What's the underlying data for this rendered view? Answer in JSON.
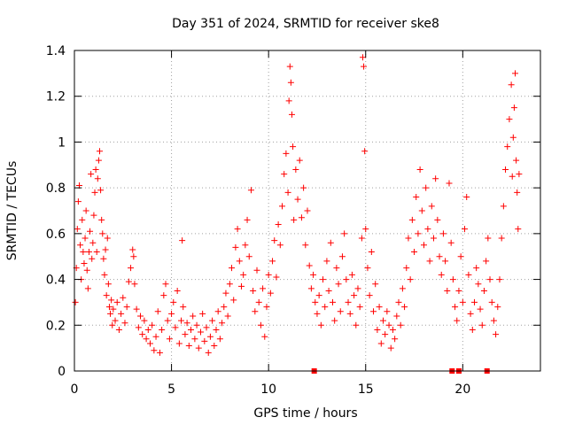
{
  "chart_data": {
    "type": "scatter",
    "title": "Day 351 of 2024, SRMTID for receiver ske8",
    "xlabel": "GPS time / hours",
    "ylabel": "SRMTID / TECUs",
    "xlim": [
      0,
      24
    ],
    "ylim": [
      0,
      1.4
    ],
    "xticks": [
      0,
      5,
      10,
      15,
      20
    ],
    "yticks": [
      0,
      0.2,
      0.4,
      0.6,
      0.8,
      1,
      1.2,
      1.4
    ],
    "xtick_labels": [
      "0",
      "5",
      "10",
      "15",
      "20"
    ],
    "ytick_labels": [
      "0",
      "0.2",
      "0.4",
      "0.6",
      "0.8",
      "1",
      "1.2",
      "1.4"
    ],
    "grid": true,
    "marker": "+",
    "color": "#ff0000",
    "series": [
      {
        "name": "SRMTID",
        "points": [
          [
            0.05,
            0.3
          ],
          [
            0.1,
            0.45
          ],
          [
            0.15,
            0.62
          ],
          [
            0.2,
            0.74
          ],
          [
            0.25,
            0.81
          ],
          [
            0.3,
            0.55
          ],
          [
            0.35,
            0.4
          ],
          [
            0.4,
            0.66
          ],
          [
            0.45,
            0.52
          ],
          [
            0.5,
            0.47
          ],
          [
            0.55,
            0.58
          ],
          [
            0.6,
            0.7
          ],
          [
            0.65,
            0.44
          ],
          [
            0.7,
            0.36
          ],
          [
            0.75,
            0.52
          ],
          [
            0.8,
            0.61
          ],
          [
            0.85,
            0.86
          ],
          [
            0.9,
            0.49
          ],
          [
            0.95,
            0.56
          ],
          [
            1.0,
            0.68
          ],
          [
            1.05,
            0.78
          ],
          [
            1.1,
            0.88
          ],
          [
            1.15,
            0.52
          ],
          [
            1.2,
            0.84
          ],
          [
            1.25,
            0.92
          ],
          [
            1.3,
            0.96
          ],
          [
            1.35,
            0.79
          ],
          [
            1.4,
            0.66
          ],
          [
            1.45,
            0.6
          ],
          [
            1.5,
            0.49
          ],
          [
            1.55,
            0.42
          ],
          [
            1.6,
            0.53
          ],
          [
            1.65,
            0.33
          ],
          [
            1.7,
            0.58
          ],
          [
            1.75,
            0.38
          ],
          [
            1.8,
            0.28
          ],
          [
            1.85,
            0.25
          ],
          [
            1.9,
            0.31
          ],
          [
            1.95,
            0.2
          ],
          [
            2.0,
            0.27
          ],
          [
            2.1,
            0.22
          ],
          [
            2.2,
            0.3
          ],
          [
            2.3,
            0.18
          ],
          [
            2.4,
            0.25
          ],
          [
            2.5,
            0.32
          ],
          [
            2.6,
            0.21
          ],
          [
            2.7,
            0.28
          ],
          [
            2.8,
            0.39
          ],
          [
            2.9,
            0.45
          ],
          [
            3.0,
            0.53
          ],
          [
            3.05,
            0.5
          ],
          [
            3.1,
            0.38
          ],
          [
            3.2,
            0.27
          ],
          [
            3.3,
            0.19
          ],
          [
            3.4,
            0.24
          ],
          [
            3.5,
            0.16
          ],
          [
            3.6,
            0.22
          ],
          [
            3.7,
            0.14
          ],
          [
            3.8,
            0.18
          ],
          [
            3.9,
            0.12
          ],
          [
            4.0,
            0.2
          ],
          [
            4.1,
            0.09
          ],
          [
            4.2,
            0.15
          ],
          [
            4.3,
            0.26
          ],
          [
            4.4,
            0.08
          ],
          [
            4.5,
            0.18
          ],
          [
            4.6,
            0.33
          ],
          [
            4.7,
            0.38
          ],
          [
            4.8,
            0.22
          ],
          [
            4.9,
            0.14
          ],
          [
            5.0,
            0.25
          ],
          [
            5.1,
            0.3
          ],
          [
            5.2,
            0.19
          ],
          [
            5.3,
            0.35
          ],
          [
            5.4,
            0.12
          ],
          [
            5.5,
            0.22
          ],
          [
            5.55,
            0.57
          ],
          [
            5.6,
            0.28
          ],
          [
            5.7,
            0.16
          ],
          [
            5.8,
            0.21
          ],
          [
            5.9,
            0.11
          ],
          [
            6.0,
            0.18
          ],
          [
            6.1,
            0.24
          ],
          [
            6.2,
            0.14
          ],
          [
            6.3,
            0.2
          ],
          [
            6.4,
            0.1
          ],
          [
            6.5,
            0.17
          ],
          [
            6.6,
            0.25
          ],
          [
            6.7,
            0.13
          ],
          [
            6.8,
            0.19
          ],
          [
            6.9,
            0.08
          ],
          [
            7.0,
            0.15
          ],
          [
            7.1,
            0.22
          ],
          [
            7.2,
            0.11
          ],
          [
            7.3,
            0.18
          ],
          [
            7.4,
            0.26
          ],
          [
            7.5,
            0.14
          ],
          [
            7.6,
            0.21
          ],
          [
            7.7,
            0.28
          ],
          [
            7.8,
            0.34
          ],
          [
            7.9,
            0.24
          ],
          [
            8.0,
            0.38
          ],
          [
            8.1,
            0.45
          ],
          [
            8.2,
            0.31
          ],
          [
            8.3,
            0.54
          ],
          [
            8.4,
            0.62
          ],
          [
            8.5,
            0.48
          ],
          [
            8.6,
            0.37
          ],
          [
            8.7,
            0.42
          ],
          [
            8.8,
            0.55
          ],
          [
            8.9,
            0.66
          ],
          [
            9.0,
            0.5
          ],
          [
            9.1,
            0.79
          ],
          [
            9.2,
            0.35
          ],
          [
            9.3,
            0.26
          ],
          [
            9.4,
            0.44
          ],
          [
            9.5,
            0.3
          ],
          [
            9.6,
            0.2
          ],
          [
            9.7,
            0.36
          ],
          [
            9.8,
            0.15
          ],
          [
            9.9,
            0.28
          ],
          [
            10.0,
            0.42
          ],
          [
            10.1,
            0.34
          ],
          [
            10.2,
            0.48
          ],
          [
            10.3,
            0.57
          ],
          [
            10.4,
            0.41
          ],
          [
            10.5,
            0.64
          ],
          [
            10.6,
            0.55
          ],
          [
            10.7,
            0.72
          ],
          [
            10.8,
            0.86
          ],
          [
            10.9,
            0.95
          ],
          [
            11.0,
            0.78
          ],
          [
            11.05,
            1.18
          ],
          [
            11.1,
            1.33
          ],
          [
            11.15,
            1.26
          ],
          [
            11.2,
            1.12
          ],
          [
            11.25,
            0.98
          ],
          [
            11.3,
            0.66
          ],
          [
            11.4,
            0.88
          ],
          [
            11.5,
            0.75
          ],
          [
            11.6,
            0.92
          ],
          [
            11.7,
            0.67
          ],
          [
            11.8,
            0.8
          ],
          [
            11.9,
            0.55
          ],
          [
            12.0,
            0.7
          ],
          [
            12.1,
            0.46
          ],
          [
            12.2,
            0.36
          ],
          [
            12.3,
            0.42
          ],
          [
            12.4,
            0.3
          ],
          [
            12.5,
            0.25
          ],
          [
            12.6,
            0.33
          ],
          [
            12.7,
            0.2
          ],
          [
            12.8,
            0.4
          ],
          [
            12.9,
            0.28
          ],
          [
            13.0,
            0.48
          ],
          [
            13.1,
            0.35
          ],
          [
            13.2,
            0.56
          ],
          [
            13.3,
            0.3
          ],
          [
            13.4,
            0.22
          ],
          [
            13.5,
            0.45
          ],
          [
            13.6,
            0.38
          ],
          [
            13.7,
            0.26
          ],
          [
            13.8,
            0.5
          ],
          [
            13.9,
            0.6
          ],
          [
            14.0,
            0.4
          ],
          [
            14.1,
            0.3
          ],
          [
            14.2,
            0.25
          ],
          [
            14.3,
            0.42
          ],
          [
            14.4,
            0.33
          ],
          [
            14.5,
            0.2
          ],
          [
            14.6,
            0.36
          ],
          [
            14.7,
            0.28
          ],
          [
            14.8,
            0.58
          ],
          [
            14.85,
            1.37
          ],
          [
            14.9,
            1.33
          ],
          [
            14.95,
            0.96
          ],
          [
            15.0,
            0.62
          ],
          [
            15.1,
            0.45
          ],
          [
            15.2,
            0.33
          ],
          [
            15.3,
            0.52
          ],
          [
            15.4,
            0.26
          ],
          [
            15.5,
            0.38
          ],
          [
            15.6,
            0.18
          ],
          [
            15.7,
            0.28
          ],
          [
            15.8,
            0.12
          ],
          [
            15.9,
            0.22
          ],
          [
            16.0,
            0.16
          ],
          [
            16.1,
            0.26
          ],
          [
            16.2,
            0.2
          ],
          [
            16.3,
            0.1
          ],
          [
            16.4,
            0.18
          ],
          [
            16.5,
            0.14
          ],
          [
            16.6,
            0.24
          ],
          [
            16.7,
            0.3
          ],
          [
            16.8,
            0.2
          ],
          [
            16.9,
            0.36
          ],
          [
            17.0,
            0.28
          ],
          [
            17.1,
            0.45
          ],
          [
            17.2,
            0.58
          ],
          [
            17.3,
            0.4
          ],
          [
            17.4,
            0.66
          ],
          [
            17.5,
            0.52
          ],
          [
            17.6,
            0.76
          ],
          [
            17.7,
            0.6
          ],
          [
            17.8,
            0.88
          ],
          [
            17.9,
            0.7
          ],
          [
            18.0,
            0.55
          ],
          [
            18.1,
            0.8
          ],
          [
            18.2,
            0.62
          ],
          [
            18.3,
            0.48
          ],
          [
            18.4,
            0.72
          ],
          [
            18.5,
            0.58
          ],
          [
            18.6,
            0.84
          ],
          [
            18.7,
            0.66
          ],
          [
            18.8,
            0.5
          ],
          [
            18.9,
            0.42
          ],
          [
            19.0,
            0.6
          ],
          [
            19.1,
            0.48
          ],
          [
            19.2,
            0.35
          ],
          [
            19.3,
            0.82
          ],
          [
            19.4,
            0.56
          ],
          [
            19.5,
            0.4
          ],
          [
            19.6,
            0.28
          ],
          [
            19.7,
            0.22
          ],
          [
            19.8,
            0.35
          ],
          [
            19.9,
            0.5
          ],
          [
            20.0,
            0.3
          ],
          [
            20.1,
            0.62
          ],
          [
            20.2,
            0.76
          ],
          [
            20.3,
            0.42
          ],
          [
            20.4,
            0.25
          ],
          [
            20.5,
            0.18
          ],
          [
            20.6,
            0.3
          ],
          [
            20.7,
            0.45
          ],
          [
            20.8,
            0.38
          ],
          [
            20.9,
            0.27
          ],
          [
            21.0,
            0.2
          ],
          [
            21.1,
            0.35
          ],
          [
            21.2,
            0.48
          ],
          [
            21.3,
            0.58
          ],
          [
            21.4,
            0.4
          ],
          [
            21.5,
            0.3
          ],
          [
            21.6,
            0.22
          ],
          [
            21.7,
            0.16
          ],
          [
            21.8,
            0.28
          ],
          [
            21.9,
            0.4
          ],
          [
            22.0,
            0.58
          ],
          [
            22.1,
            0.72
          ],
          [
            22.2,
            0.88
          ],
          [
            22.3,
            0.98
          ],
          [
            22.4,
            1.1
          ],
          [
            22.5,
            1.25
          ],
          [
            22.55,
            0.85
          ],
          [
            22.6,
            1.02
          ],
          [
            22.65,
            1.15
          ],
          [
            22.7,
            1.3
          ],
          [
            22.75,
            0.92
          ],
          [
            22.8,
            0.78
          ],
          [
            22.85,
            0.62
          ],
          [
            22.9,
            0.86
          ]
        ]
      }
    ],
    "gap_markers_x": [
      12.35,
      19.45,
      19.8,
      21.25
    ]
  }
}
